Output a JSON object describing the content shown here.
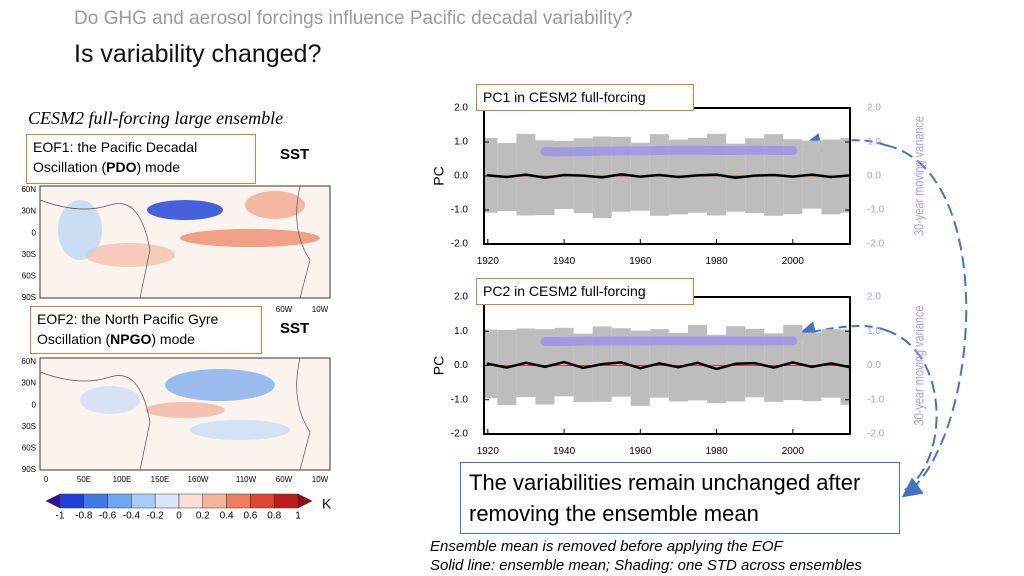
{
  "header": {
    "subtitle": "Do GHG and aerosol forcings influence Pacific decadal variability?",
    "title": "Is variability changed?"
  },
  "left": {
    "heading": "CESM2 full-forcing large ensemble",
    "maps": [
      {
        "label_parts": [
          "EOF1: the Pacific Decadal",
          "Oscillation (",
          "PDO",
          ") mode"
        ],
        "field": "SST"
      },
      {
        "label_parts": [
          "EOF2: the North Pacific Gyre",
          "Oscillation (",
          "NPGO",
          ") mode"
        ],
        "field": "SST"
      }
    ],
    "lat_labels": [
      "60N",
      "30N",
      "0",
      "30S",
      "60S",
      "90S"
    ],
    "lon_labels_first": [
      "60W",
      "10W"
    ],
    "lon_labels": [
      "0",
      "50E",
      "100E",
      "150E",
      "160W",
      "110W",
      "60W",
      "10W"
    ],
    "colorbar": {
      "ticks": [
        -1,
        -0.8,
        -0.6,
        -0.4,
        -0.2,
        0,
        0.2,
        0.4,
        0.6,
        0.8,
        1
      ],
      "unit": "K",
      "colors": [
        "#3a0a9e",
        "#1f3fd6",
        "#3f7ae8",
        "#6fa6f2",
        "#a9ccf7",
        "#d8e8fb",
        "#fbe0d6",
        "#f6b49e",
        "#ee7d62",
        "#e0452e",
        "#bd1c1c",
        "#8e0b12"
      ]
    }
  },
  "chart_data": [
    {
      "type": "line",
      "title": "PC1 in CESM2 full-forcing",
      "y_label": "PC",
      "y2_label": "30-year moving variance",
      "xlim": [
        1919,
        2015
      ],
      "xticks": [
        1920,
        1940,
        1960,
        1980,
        2000
      ],
      "ylim": [
        -2,
        2
      ],
      "yticks": [
        {
          "value": -2,
          "label": "-2.0"
        },
        {
          "value": -1,
          "label": "-1.0"
        },
        {
          "value": 0,
          "label": "0.0"
        },
        {
          "value": 1,
          "label": "1.0"
        },
        {
          "value": 2,
          "label": "2.0"
        }
      ],
      "y2lim": [
        -2,
        2
      ],
      "y2ticks": [
        {
          "value": -2,
          "label": "-2.0"
        },
        {
          "value": -1,
          "label": "-1.0"
        },
        {
          "value": 0,
          "label": "0.0"
        },
        {
          "value": 1,
          "label": "1.0"
        },
        {
          "value": 2,
          "label": "2.0"
        }
      ],
      "x": [
        1920,
        1925,
        1930,
        1935,
        1940,
        1945,
        1950,
        1955,
        1960,
        1965,
        1970,
        1975,
        1980,
        1985,
        1990,
        1995,
        2000,
        2005,
        2010,
        2015
      ],
      "series": [
        {
          "color": "#000000",
          "values": [
            0.02,
            -0.03,
            0.04,
            -0.05,
            0.03,
            0.01,
            -0.04,
            0.05,
            -0.02,
            0.03,
            -0.03,
            0.02,
            0.04,
            -0.05,
            0.01,
            0.03,
            -0.02,
            0.04,
            -0.03,
            0.02
          ]
        },
        {
          "color": "#bdbdbd",
          "values": [
            1.1,
            1.0,
            1.2,
            1.1,
            1.0,
            1.1,
            1.2,
            1.1,
            1.0,
            1.2,
            1.1,
            1.1,
            1.2,
            1.0,
            1.1,
            1.2,
            1.1,
            1.0,
            1.1,
            1.1
          ]
        },
        {
          "color": "#9b8cf0",
          "axis": "y2",
          "values": [
            null,
            null,
            null,
            0.72,
            0.71,
            0.72,
            0.73,
            0.74,
            0.74,
            0.75,
            0.76,
            0.76,
            0.75,
            0.75,
            0.76,
            0.75,
            0.75,
            null,
            null,
            null
          ]
        }
      ]
    },
    {
      "type": "line",
      "title": "PC2 in CESM2 full-forcing",
      "y_label": "PC",
      "y2_label": "30-year moving variance",
      "xlim": [
        1919,
        2015
      ],
      "xticks": [
        1920,
        1940,
        1960,
        1980,
        2000
      ],
      "ylim": [
        -2,
        2
      ],
      "yticks": [
        {
          "value": -2,
          "label": "-2.0"
        },
        {
          "value": -1,
          "label": "-1.0"
        },
        {
          "value": 0,
          "label": "0.0"
        },
        {
          "value": 1,
          "label": "1.0"
        },
        {
          "value": 2,
          "label": "2.0"
        }
      ],
      "y2lim": [
        -2,
        2
      ],
      "y2ticks": [
        {
          "value": -2,
          "label": "-2.0"
        },
        {
          "value": -1,
          "label": "-1.0"
        },
        {
          "value": 0,
          "label": "0.0"
        },
        {
          "value": 1,
          "label": "1.0"
        },
        {
          "value": 2,
          "label": "2.0"
        }
      ],
      "x": [
        1920,
        1925,
        1930,
        1935,
        1940,
        1945,
        1950,
        1955,
        1960,
        1965,
        1970,
        1975,
        1980,
        1985,
        1990,
        1995,
        2000,
        2005,
        2010,
        2015
      ],
      "series": [
        {
          "color": "#000000",
          "values": [
            0.05,
            -0.06,
            0.08,
            -0.04,
            0.1,
            -0.07,
            0.04,
            0.09,
            -0.08,
            0.06,
            -0.05,
            0.08,
            -0.1,
            0.05,
            0.07,
            -0.06,
            0.09,
            -0.04,
            0.06,
            -0.05
          ]
        },
        {
          "color": "#bdbdbd",
          "values": [
            1.0,
            1.1,
            1.0,
            1.1,
            1.0,
            1.0,
            1.1,
            1.0,
            1.1,
            1.0,
            1.0,
            1.1,
            1.0,
            1.1,
            1.0,
            1.0,
            1.1,
            1.0,
            1.0,
            1.1
          ]
        },
        {
          "color": "#9b8cf0",
          "axis": "y2",
          "values": [
            null,
            null,
            null,
            0.7,
            0.7,
            0.71,
            0.71,
            0.72,
            0.71,
            0.72,
            0.72,
            0.71,
            0.72,
            0.72,
            0.71,
            0.72,
            0.72,
            null,
            null,
            null
          ]
        }
      ]
    }
  ],
  "annotations": {
    "conclusion": "The variabilities remain unchanged after removing the ensemble mean",
    "notes": [
      "Ensemble mean is removed before applying the EOF",
      "Solid line: ensemble mean; Shading: one STD across ensembles"
    ]
  }
}
